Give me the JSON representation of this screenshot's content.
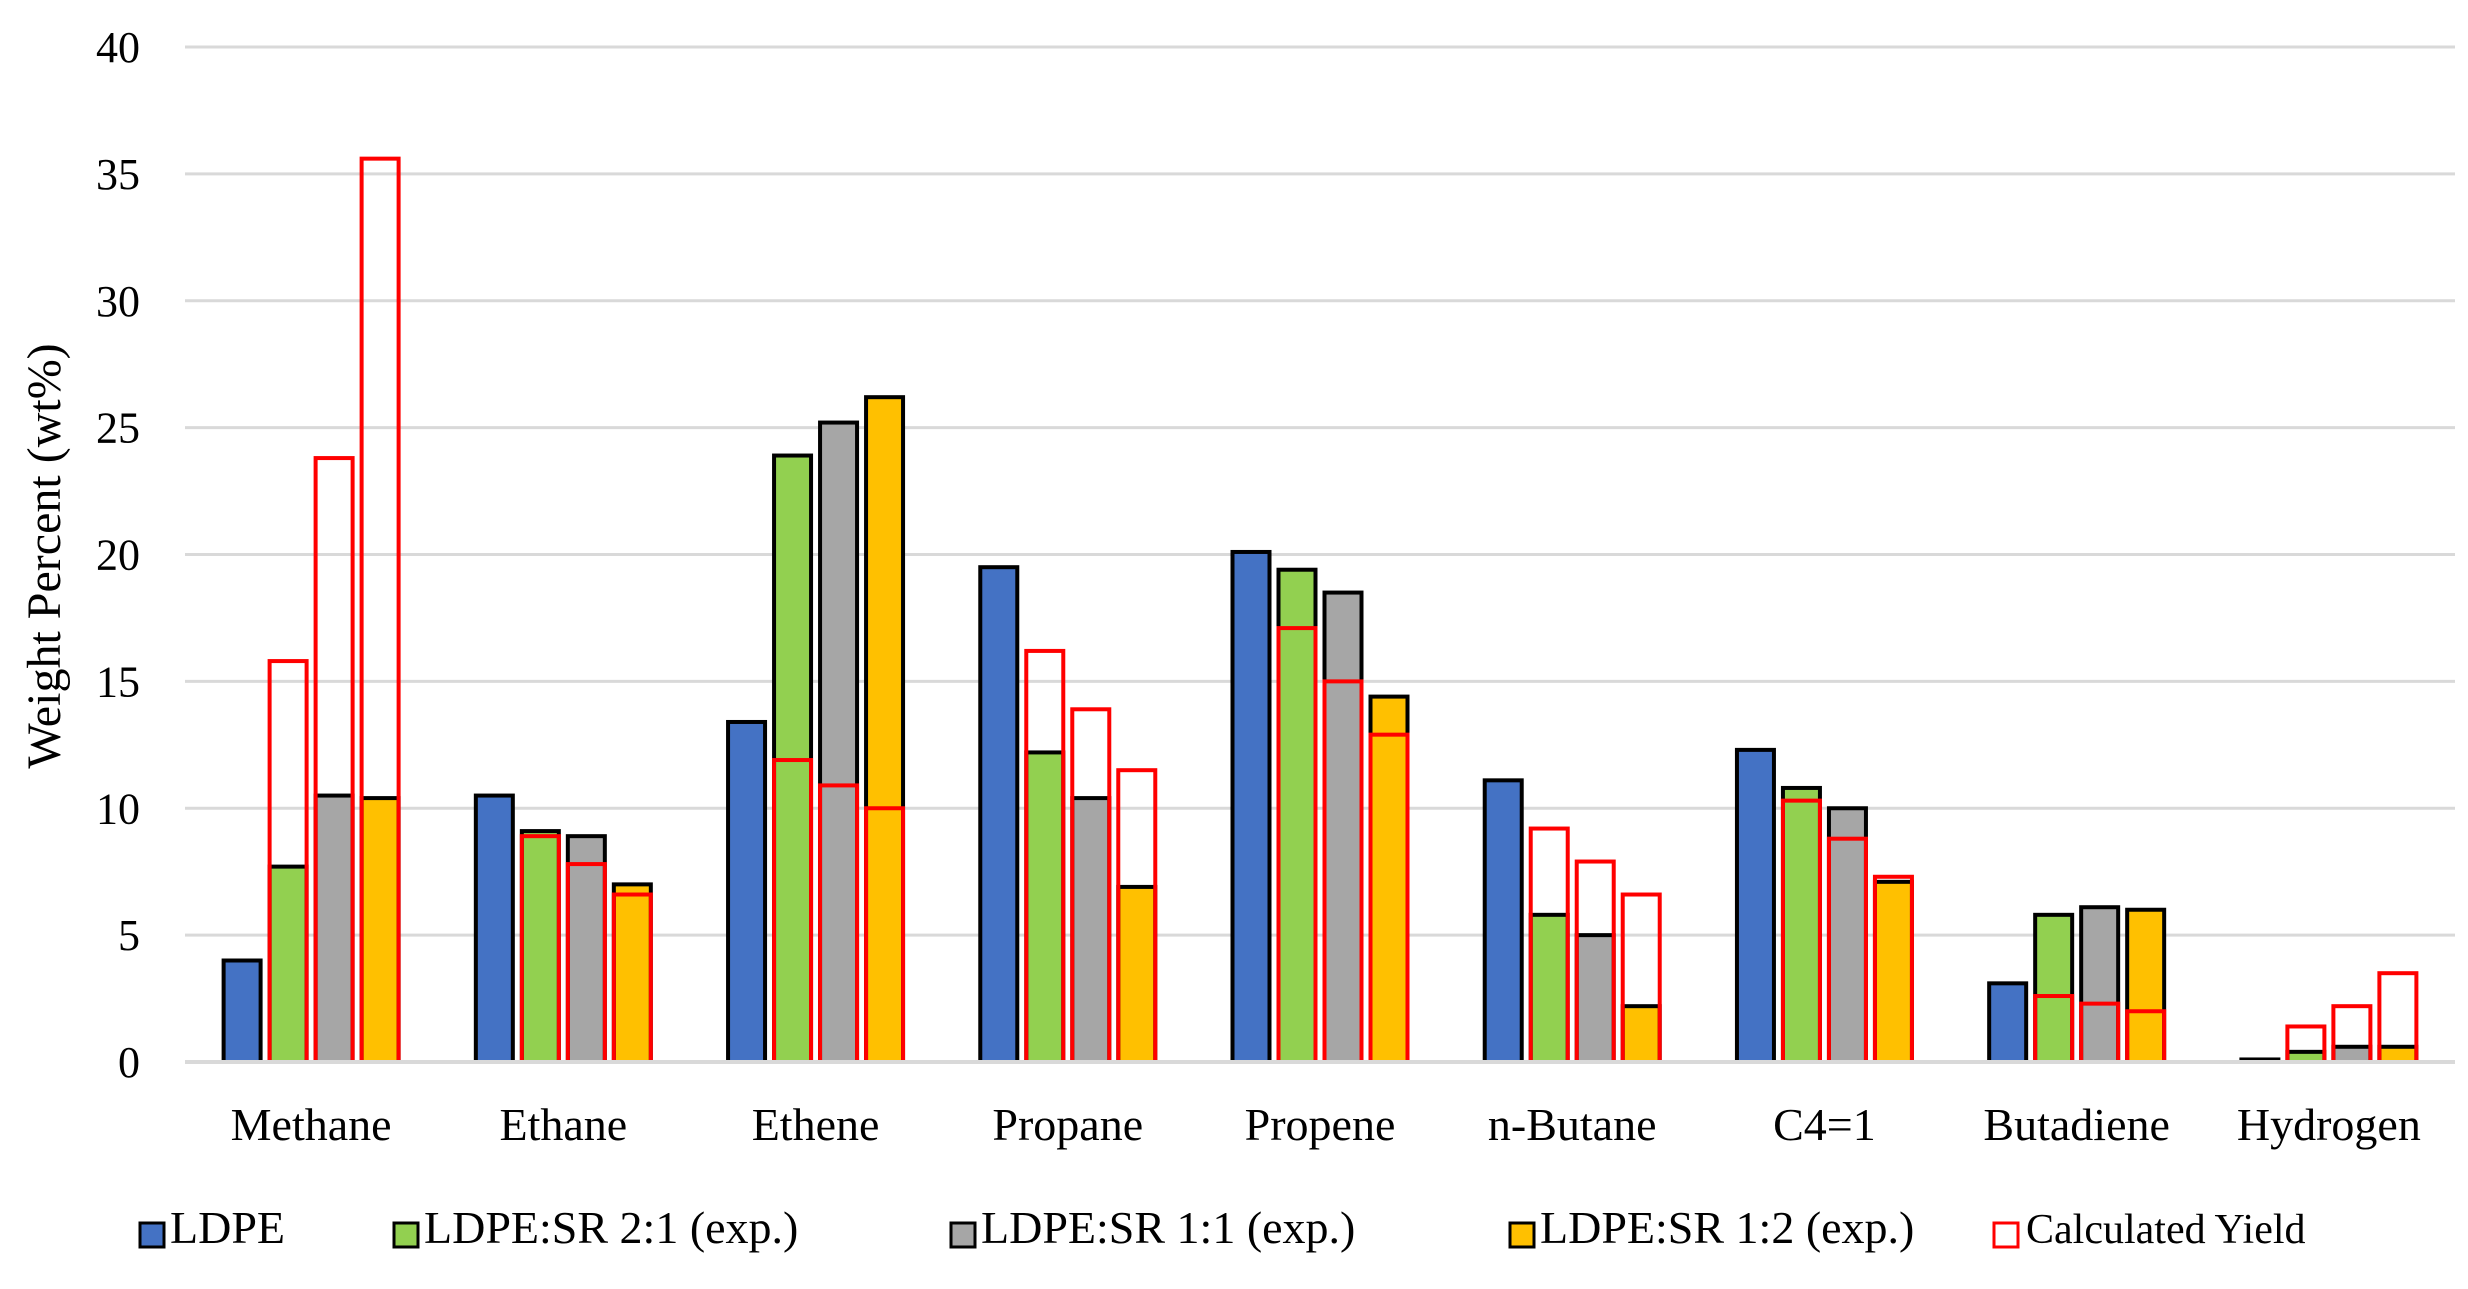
{
  "chart_data": {
    "type": "bar",
    "ylabel": "Weight Percent (wt%)",
    "xlabel": "",
    "ylim": [
      0,
      40
    ],
    "yticks": [
      0,
      5,
      10,
      15,
      20,
      25,
      30,
      35,
      40
    ],
    "grid": true,
    "legend_position": "bottom",
    "categories": [
      "Methane",
      "Ethane",
      "Ethene",
      "Propane",
      "Propene",
      "n-Butane",
      "C4=1",
      "Butadiene",
      "Hydrogen"
    ],
    "series": [
      {
        "name": "LDPE",
        "color": "#4472C4",
        "values": [
          4.0,
          10.5,
          13.4,
          19.5,
          20.1,
          11.1,
          12.3,
          3.1,
          0.1
        ]
      },
      {
        "name": "LDPE:SR 2:1 (exp.)",
        "color": "#92D050",
        "values": [
          7.7,
          9.1,
          23.9,
          12.2,
          19.4,
          5.8,
          10.8,
          5.8,
          0.4
        ]
      },
      {
        "name": "LDPE:SR 1:1 (exp.)",
        "color": "#A6A6A6",
        "values": [
          10.5,
          8.9,
          25.2,
          10.4,
          18.5,
          5.0,
          10.0,
          6.1,
          0.6
        ]
      },
      {
        "name": "LDPE:SR 1:2 (exp.)",
        "color": "#FFC000",
        "values": [
          10.4,
          7.0,
          26.2,
          6.9,
          14.4,
          2.2,
          7.1,
          6.0,
          0.6
        ]
      }
    ],
    "calculated_yield": {
      "name": "Calculated Yield",
      "color": "#FF0000",
      "values": [
        [
          15.8,
          23.8,
          35.6
        ],
        [
          8.9,
          7.8,
          6.6
        ],
        [
          11.9,
          10.9,
          10.0
        ],
        [
          16.2,
          13.9,
          11.5
        ],
        [
          17.1,
          15.0,
          12.9
        ],
        [
          9.2,
          7.9,
          6.6
        ],
        [
          10.3,
          8.8,
          7.3
        ],
        [
          2.6,
          2.3,
          2.0
        ],
        [
          1.4,
          2.2,
          3.5
        ]
      ]
    }
  }
}
